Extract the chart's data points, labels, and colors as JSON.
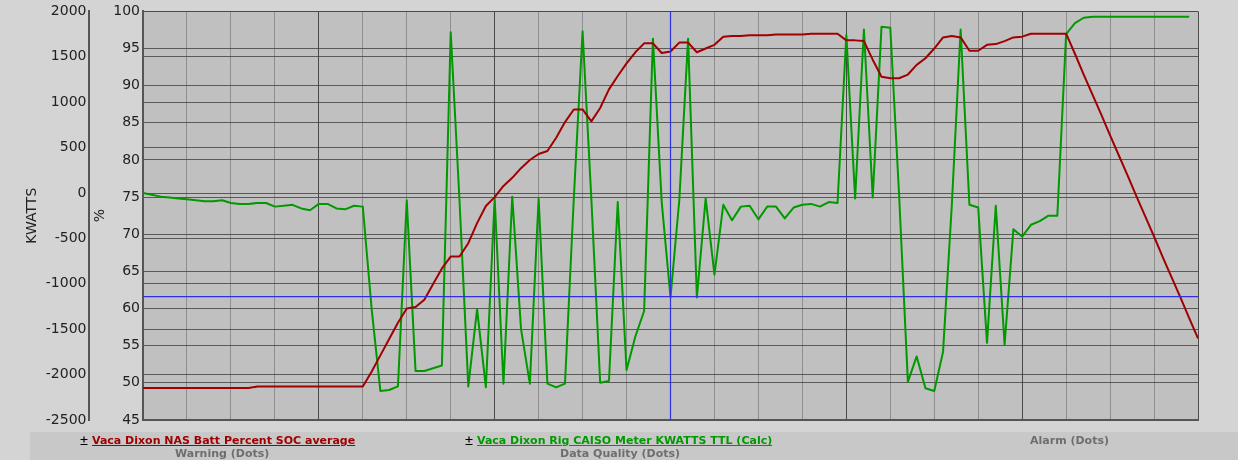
{
  "chart_data": {
    "type": "line",
    "ylabel": "%",
    "y2label": "KWATTS",
    "categories": [
      null,
      null,
      null,
      null,
      null,
      null,
      null,
      null,
      null,
      null,
      null,
      null,
      null,
      null,
      null,
      null,
      null,
      null,
      null,
      null,
      null,
      null,
      null,
      null,
      null,
      null,
      null,
      null,
      null,
      null,
      null,
      null,
      null,
      null,
      null,
      null,
      null,
      null,
      null,
      null,
      null,
      null,
      null,
      null,
      null,
      null,
      null,
      null,
      null,
      null,
      null,
      null,
      null,
      null,
      null,
      null,
      null,
      null,
      null,
      null,
      null,
      null,
      null,
      null,
      null,
      null,
      null,
      null,
      null,
      null,
      null,
      null,
      null,
      null,
      null,
      null,
      null,
      null,
      null,
      null,
      null,
      null,
      null,
      null,
      null,
      null,
      null,
      null,
      null,
      null,
      null,
      null,
      null,
      null,
      null,
      null,
      null,
      null,
      null,
      null,
      null,
      null,
      null,
      null,
      null,
      null,
      null,
      null,
      null,
      null,
      null,
      null,
      null,
      null,
      null,
      null,
      null,
      null,
      null,
      null,
      null
    ],
    "ylim": [
      45,
      100
    ],
    "yticks": [
      45,
      50,
      55,
      60,
      65,
      70,
      75,
      80,
      85,
      90,
      95,
      100
    ],
    "y2lim": [
      -2500,
      2000
    ],
    "y2ticks": [
      -2500,
      -2000,
      -1500,
      -1000,
      -500,
      0,
      500,
      1000,
      1500,
      2000
    ],
    "grid": true,
    "legend": "bottom",
    "tick_labels": "y",
    "marker": "none",
    "line_style": "solid",
    "series": [
      {
        "name": "Vaca Dixon NAS Batt Percent SOC average",
        "color": "#a00000",
        "values": [
          49.3,
          49.3,
          49.3,
          49.3,
          49.3,
          49.3,
          49.3,
          49.3,
          49.3,
          49.3,
          49.3,
          49.3,
          49.3,
          49.5,
          49.5,
          49.5,
          49.5,
          49.5,
          49.5,
          49.5,
          49.5,
          49.5,
          49.5,
          49.5,
          49.5,
          49.5,
          51.5,
          53.7,
          55.9,
          58.1,
          60,
          60.2,
          61.2,
          63.3,
          65.4,
          67,
          67,
          68.8,
          71.5,
          73.8,
          75,
          76.5,
          77.6,
          78.9,
          80,
          80.8,
          81.2,
          83,
          85.1,
          86.8,
          86.8,
          85.2,
          87,
          89.5,
          91.3,
          93,
          94.5,
          95.7,
          95.7,
          94.4,
          94.6,
          95.8,
          95.8,
          94.5,
          95,
          95.5,
          96.6,
          96.7,
          96.7,
          96.8,
          96.8,
          96.8,
          96.9,
          96.9,
          96.9,
          96.9,
          97,
          97,
          97,
          97,
          96.1,
          96.1,
          96,
          93.5,
          91.2,
          91,
          91,
          91.5,
          92.8,
          93.7,
          95,
          96.5,
          96.7,
          96.5,
          94.7,
          94.7,
          95.5,
          95.6,
          96,
          96.5,
          96.6,
          97,
          97,
          97,
          97,
          97,
          94.3,
          91.5,
          88.8,
          86.1,
          83.3,
          80.6,
          77.9,
          75.1,
          72.4,
          69.7,
          66.9,
          64.2,
          61.5,
          58.7,
          56
        ]
      },
      {
        "name": "Vaca Dixon Rig CAISO Meter KWATTS TTL (Calc)",
        "color": "#009900",
        "axis": "y2",
        "values": [
          0,
          -20,
          -40,
          -50,
          -60,
          -70,
          -80,
          -90,
          -90,
          -80,
          -110,
          -120,
          -120,
          -110,
          -110,
          -150,
          -140,
          -130,
          -170,
          -190,
          -120,
          -120,
          -170,
          -180,
          -140,
          -150,
          -1270,
          -2180,
          -2170,
          -2130,
          -80,
          -1960,
          -1960,
          -1930,
          -1900,
          1770,
          -80,
          -2130,
          -1280,
          -2140,
          -60,
          -2100,
          -40,
          -1500,
          -2100,
          -60,
          -2100,
          -2140,
          -2100,
          -60,
          1780,
          -70,
          -2090,
          -2070,
          -100,
          -1950,
          -1580,
          -1300,
          1700,
          -100,
          -1150,
          -80,
          1700,
          -1150,
          -60,
          -900,
          -130,
          -300,
          -150,
          -140,
          -290,
          -150,
          -150,
          -280,
          -160,
          -130,
          -120,
          -150,
          -100,
          -110,
          1740,
          -60,
          1800,
          -50,
          1830,
          1820,
          -20,
          -2080,
          -1800,
          -2150,
          -2180,
          -1750,
          -130,
          1800,
          -130,
          -160,
          -1650,
          -140,
          -1670,
          -400,
          -480,
          -350,
          -310,
          -250,
          -250,
          1750,
          1870,
          1930,
          1940,
          1940,
          1940,
          1940,
          1940,
          1940,
          1940,
          1940,
          1940,
          1940,
          1940,
          1940,
          null
        ]
      }
    ],
    "ref_lines": [
      {
        "axis": "y",
        "value": 61.6,
        "color": "#3030e0"
      }
    ],
    "annotations": [
      "Alarm (Dots)",
      "Warning (Dots)",
      "Data Quality (Dots)"
    ]
  }
}
